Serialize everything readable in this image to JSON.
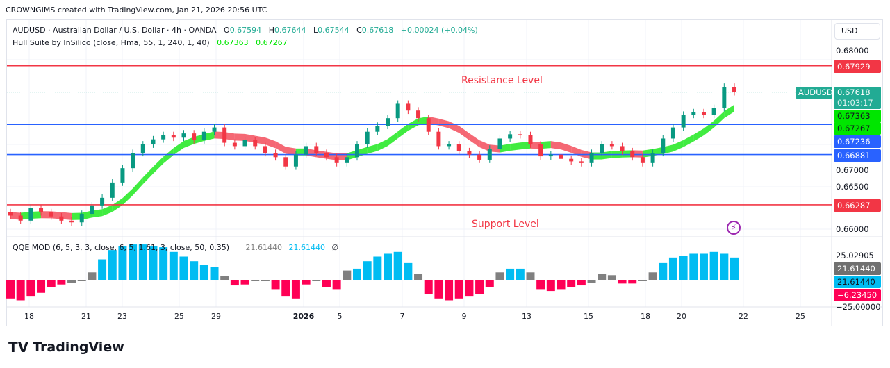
{
  "credit": "CROWNGIMS created with TradingView.com, Jan 21, 2026 20:56 UTC",
  "legend": {
    "symbol": "AUDUSD · Australian Dollar / U.S. Dollar · 4h · OANDA",
    "o_label": "O",
    "o": "0.67594",
    "h_label": "H",
    "h": "0.67644",
    "l_label": "L",
    "l": "0.67544",
    "c_label": "C",
    "c": "0.67618",
    "change": "+0.00024 (+0.04%)",
    "indicator": "Hull Suite by InSilico (close, Hma, 55, 1, 240, 1, 40)",
    "hull1": "0.67363",
    "hull2": "0.67267"
  },
  "qqe_legend": {
    "name": "QQE MOD (6, 5, 3, 3, close, 6, 5, 1.61, 3, close, 50, 0.35)",
    "v1": "21.61440",
    "v2": "21.61440",
    "v3": "∅"
  },
  "currency": "USD",
  "annotations": {
    "resistance": "Resistance Level",
    "support": "Support Level"
  },
  "price_axis": {
    "ticks": [
      "0.68000",
      "0.67000",
      "0.66500",
      "0.66000"
    ]
  },
  "qqe_axis": {
    "ticks": [
      "25.02905",
      "−25.00000"
    ]
  },
  "price_labels": {
    "resistance": "0.67929",
    "symbol": "AUDUSD",
    "last": "0.67618",
    "countdown": "01:03:17",
    "hull1": "0.67363",
    "hull2": "0.67267",
    "blue1": "0.67236",
    "blue2": "0.66881",
    "support": "0.66287",
    "qqe1": "21.61440",
    "qqe2": "21.61440",
    "qqe3": "−6.23450"
  },
  "time_axis": [
    "18",
    "21",
    "23",
    "25",
    "29",
    "2026",
    "5",
    "7",
    "9",
    "13",
    "15",
    "18",
    "20",
    "22",
    "25"
  ],
  "logo": "TradingView",
  "colors": {
    "up": "#089981",
    "down": "#f23645",
    "hull_up": "#00e600",
    "hull_down": "#f23645",
    "level_red": "#f23645",
    "level_blue": "#2962ff",
    "qqe_blue": "#00bcf2",
    "qqe_pink": "#ff0055",
    "qqe_gray": "#808080"
  },
  "chart_data": {
    "type": "candlestick",
    "symbol": "AUDUSD",
    "timeframe": "4h",
    "ylim": [
      0.6595,
      0.6812
    ],
    "horizontal_levels": [
      0.67929,
      0.67236,
      0.66881,
      0.66287
    ],
    "closes": [
      0.6616,
      0.661,
      0.6625,
      0.662,
      0.6615,
      0.661,
      0.6608,
      0.6618,
      0.6628,
      0.6637,
      0.6655,
      0.6672,
      0.669,
      0.67,
      0.6706,
      0.6711,
      0.6708,
      0.6713,
      0.6705,
      0.6715,
      0.672,
      0.6702,
      0.6698,
      0.6705,
      0.6698,
      0.669,
      0.6685,
      0.6674,
      0.6688,
      0.6698,
      0.669,
      0.6685,
      0.6678,
      0.6685,
      0.67,
      0.6715,
      0.6722,
      0.6731,
      0.6748,
      0.674,
      0.6731,
      0.6715,
      0.6698,
      0.67,
      0.6692,
      0.6688,
      0.6682,
      0.6695,
      0.6707,
      0.6712,
      0.6711,
      0.67,
      0.6686,
      0.6688,
      0.6683,
      0.668,
      0.6678,
      0.669,
      0.67,
      0.6698,
      0.6692,
      0.6685,
      0.6678,
      0.669,
      0.6707,
      0.672,
      0.6735,
      0.6738,
      0.6735,
      0.6743,
      0.6768,
      0.67618
    ],
    "qqe_ylim": [
      -25,
      25.02905
    ],
    "qqe": [
      -20,
      -22,
      -18,
      -14,
      -8,
      -5,
      -3,
      0,
      8,
      22,
      32,
      36,
      38,
      38,
      36,
      35,
      30,
      25,
      20,
      16,
      14,
      4,
      -6,
      -5,
      0,
      0,
      -10,
      -18,
      -20,
      -5,
      0,
      -8,
      -10,
      10,
      12,
      20,
      25,
      28,
      30,
      18,
      6,
      -15,
      -20,
      -22,
      -20,
      -18,
      -15,
      -8,
      8,
      12,
      12,
      8,
      -10,
      -12,
      -10,
      -8,
      -6,
      -3,
      6,
      5,
      -4,
      -4,
      0,
      8,
      18,
      24,
      26,
      28,
      28,
      30,
      28,
      24
    ]
  }
}
